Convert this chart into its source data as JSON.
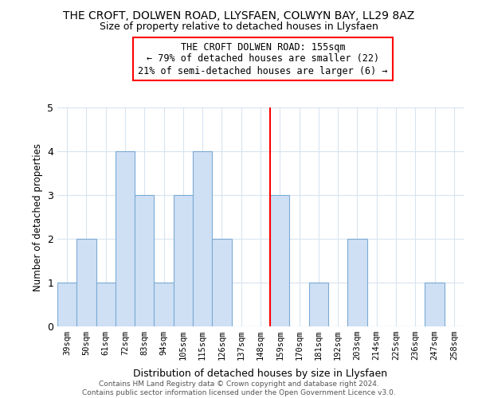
{
  "title": "THE CROFT, DOLWEN ROAD, LLYSFAEN, COLWYN BAY, LL29 8AZ",
  "subtitle": "Size of property relative to detached houses in Llysfaen",
  "xlabel": "Distribution of detached houses by size in Llysfaen",
  "ylabel": "Number of detached properties",
  "bar_labels": [
    "39sqm",
    "50sqm",
    "61sqm",
    "72sqm",
    "83sqm",
    "94sqm",
    "105sqm",
    "115sqm",
    "126sqm",
    "137sqm",
    "148sqm",
    "159sqm",
    "170sqm",
    "181sqm",
    "192sqm",
    "203sqm",
    "214sqm",
    "225sqm",
    "236sqm",
    "247sqm",
    "258sqm"
  ],
  "bar_values": [
    1,
    2,
    1,
    4,
    3,
    1,
    3,
    4,
    2,
    0,
    0,
    3,
    0,
    1,
    0,
    2,
    0,
    0,
    0,
    1,
    0
  ],
  "bar_color": "#cfe0f5",
  "bar_edge_color": "#7baad4",
  "ylim": [
    0,
    5
  ],
  "yticks": [
    0,
    1,
    2,
    3,
    4,
    5
  ],
  "property_line_x": 10.5,
  "annotation_title": "THE CROFT DOLWEN ROAD: 155sqm",
  "annotation_line1": "← 79% of detached houses are smaller (22)",
  "annotation_line2": "21% of semi-detached houses are larger (6) →",
  "footer_line1": "Contains HM Land Registry data © Crown copyright and database right 2024.",
  "footer_line2": "Contains public sector information licensed under the Open Government Licence v3.0.",
  "background_color": "#ffffff",
  "grid_color": "#d8e4f0"
}
